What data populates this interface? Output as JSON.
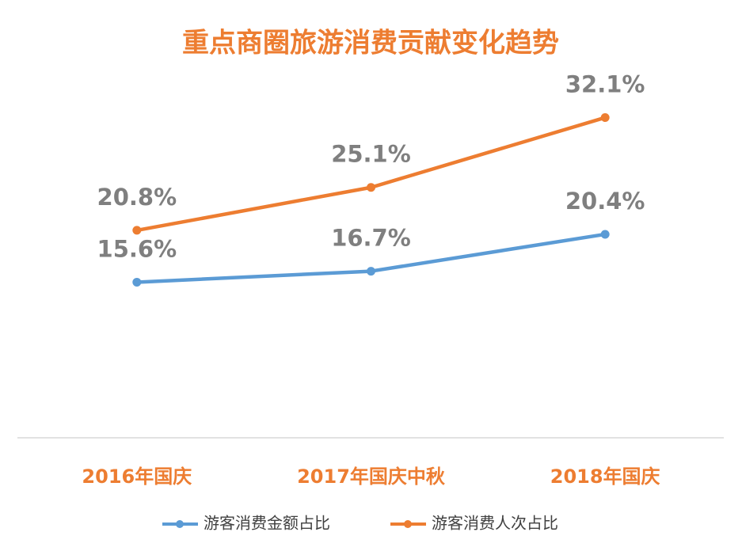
{
  "chart_data": {
    "type": "line",
    "title": "重点商圈旅游消费贡献变化趋势",
    "categories": [
      "2016年国庆",
      "2017年国庆中秋",
      "2018年国庆"
    ],
    "series": [
      {
        "name": "游客消费金额占比",
        "color": "#5b9bd5",
        "values": [
          15.6,
          16.7,
          20.4
        ],
        "value_labels": [
          "15.6%",
          "16.7%",
          "20.4%"
        ]
      },
      {
        "name": "游客消费人次占比",
        "color": "#ed7d31",
        "values": [
          20.8,
          25.1,
          32.1
        ],
        "value_labels": [
          "20.8%",
          "25.1%",
          "32.1%"
        ]
      }
    ],
    "ylim": [
      0,
      35
    ]
  }
}
